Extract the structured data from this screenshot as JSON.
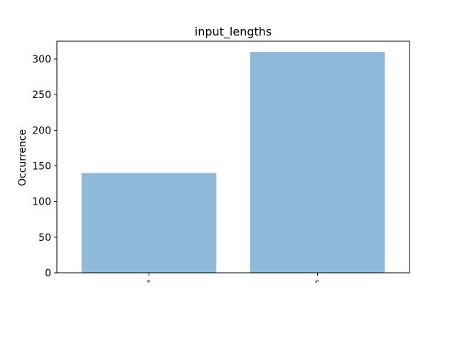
{
  "chart_data": {
    "type": "bar",
    "title": "input_lengths",
    "xlabel": "",
    "ylabel": "Occurrence",
    "categories": [
      "4",
      "5"
    ],
    "values": [
      140,
      310
    ],
    "ylim": [
      0,
      325
    ],
    "yticks": [
      0,
      50,
      100,
      150,
      200,
      250,
      300
    ],
    "bar_color": "#8fb9d9",
    "grid": false
  }
}
